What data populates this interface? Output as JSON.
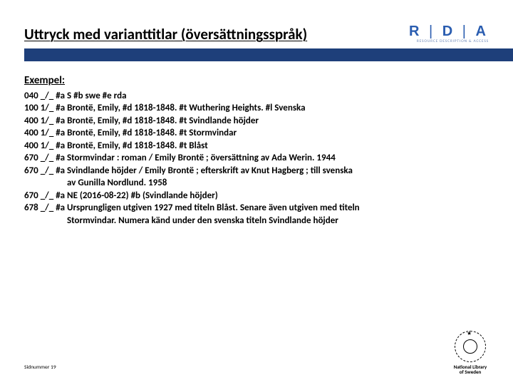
{
  "colors": {
    "bar": "#1e3f7a",
    "rda_text": "#2a5db0",
    "rda_sub": "#6d87b8",
    "background": "#ffffff",
    "text": "#000000"
  },
  "title": "Uttryck med varianttitlar (översättningsspråk)",
  "rda": {
    "letters": "R | D | A",
    "subtitle": "RESOURCE DESCRIPTION & ACCESS"
  },
  "example_label": "Exempel:",
  "marc": [
    {
      "tag": "040 _/_ ",
      "data": "#a S #b swe #e rda"
    },
    {
      "tag": "100 1/_ ",
      "data": "#a Brontë, Emily, #d 1818-1848. #t Wuthering Heights. #l Svenska"
    },
    {
      "tag": "400 1/_ ",
      "data": "#a Brontë, Emily, #d 1818-1848. #t Svindlande höjder"
    },
    {
      "tag": "400 1/_ ",
      "data": "#a Brontë, Emily, #d 1818-1848. #t Stormvindar"
    },
    {
      "tag": "400 1/_ ",
      "data": "#a Brontë, Emily, #d 1818-1848. #t Blåst"
    },
    {
      "tag": "670 _/_ ",
      "data": "#a Stormvindar : roman / Emily Brontë ; översättning av Ada Werin. 1944"
    },
    {
      "tag": "670 _/_ ",
      "data": "#a Svindlande höjder / Emily Brontë ; efterskrift av Knut Hagberg ; till svenska"
    },
    {
      "tag": "",
      "data": "av Gunilla Nordlund. 1958",
      "cont": true
    },
    {
      "tag": "670 _/_ ",
      "data": "#a NE (2016-08-22) #b (Svindlande höjder)"
    },
    {
      "tag": "678 _/_ ",
      "data": "#a Ursprungligen utgiven 1927 med titeln Blåst. Senare även utgiven med titeln"
    },
    {
      "tag": "",
      "data": "Stormvindar. Numera känd under den svenska titeln Svindlande höjder",
      "cont": true
    }
  ],
  "footer": "Sidnummer 19",
  "nls": {
    "line1": "National Library",
    "line2": "of Sweden"
  }
}
